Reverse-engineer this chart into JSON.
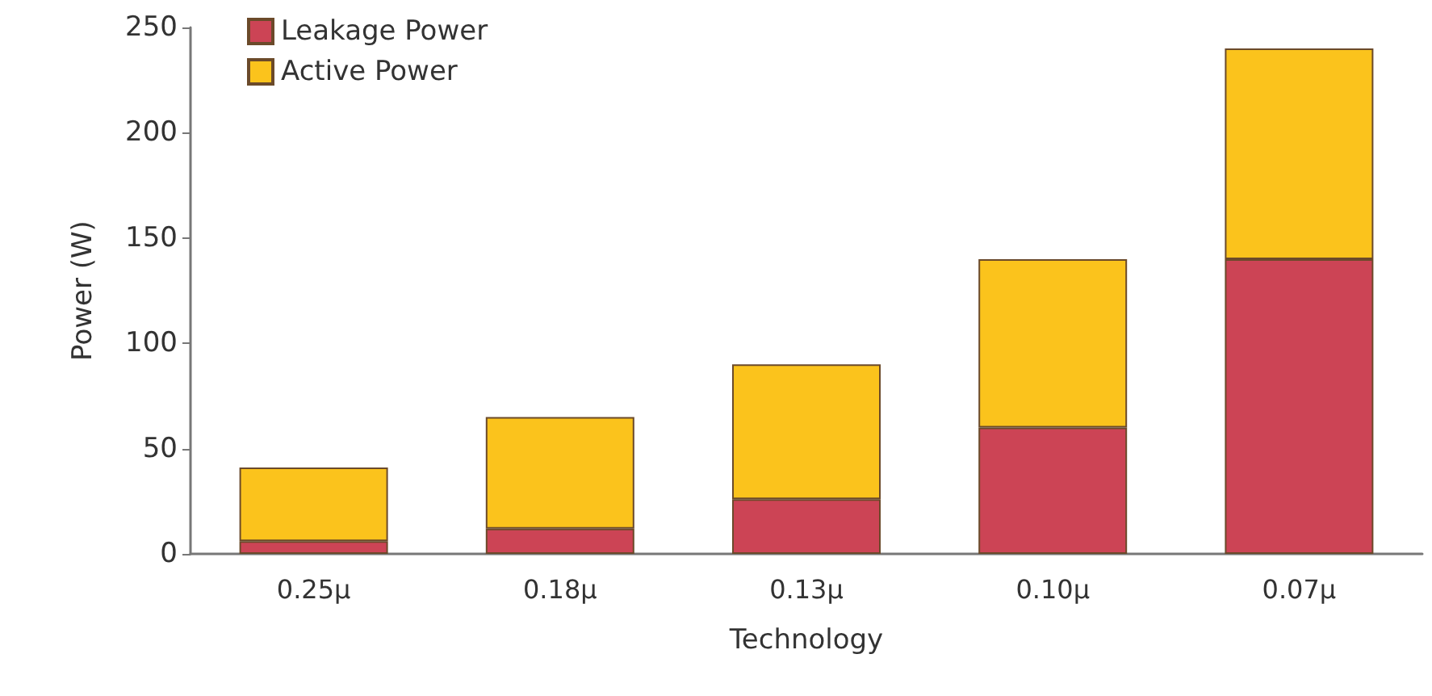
{
  "chart_data": {
    "type": "bar",
    "stacked": true,
    "xlabel": "Technology",
    "ylabel": "Power (W)",
    "categories": [
      "0.25μ",
      "0.18μ",
      "0.13μ",
      "0.10μ",
      "0.07μ"
    ],
    "series": [
      {
        "name": "Leakage Power",
        "color": "#cc4455",
        "values": [
          6,
          12,
          26,
          60,
          140
        ]
      },
      {
        "name": "Active Power",
        "color": "#fbc31c",
        "values": [
          35,
          53,
          64,
          80,
          100
        ]
      }
    ],
    "ylim": [
      0,
      250
    ],
    "yticks": [
      0,
      50,
      100,
      150,
      200,
      250
    ],
    "grid": false,
    "legend": "top left"
  }
}
